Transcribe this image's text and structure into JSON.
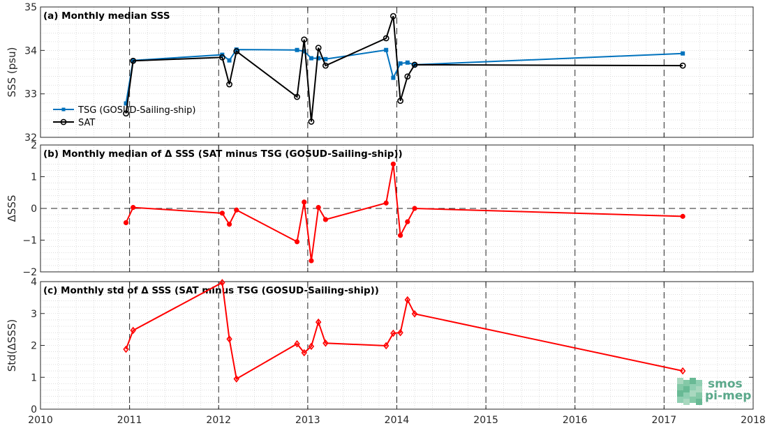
{
  "chart_data": [
    {
      "type": "line",
      "title": "(a) Monthly median SSS",
      "ylabel": "SSS (psu)",
      "ylim": [
        32,
        35
      ],
      "yticks": [
        32,
        33,
        34,
        35
      ],
      "xlim": [
        2010,
        2018
      ],
      "xticks": [
        2010,
        2011,
        2012,
        2013,
        2014,
        2015,
        2016,
        2017,
        2018
      ],
      "grid": "minor-dotted",
      "year_boundaries": [
        2011,
        2012,
        2013,
        2014,
        2015,
        2016,
        2017
      ],
      "legend_position": "lower-left",
      "series": [
        {
          "name": "TSG (GOSUD-Sailing-ship)",
          "color": "#0072BD",
          "marker": "square",
          "x": [
            2010.96,
            2011.04,
            2012.04,
            2012.12,
            2012.2,
            2012.88,
            2012.96,
            2013.04,
            2013.12,
            2013.2,
            2013.88,
            2013.96,
            2014.04,
            2014.12,
            2014.2,
            2017.21
          ],
          "values": [
            32.78,
            33.77,
            33.9,
            33.77,
            34.02,
            34.01,
            33.98,
            33.82,
            33.82,
            33.8,
            34.01,
            33.37,
            33.7,
            33.72,
            33.67,
            33.93
          ]
        },
        {
          "name": "SAT",
          "color": "#000000",
          "marker": "circle",
          "x": [
            2010.96,
            2011.04,
            2012.04,
            2012.12,
            2012.2,
            2012.88,
            2012.96,
            2013.04,
            2013.12,
            2013.2,
            2013.88,
            2013.96,
            2014.04,
            2014.12,
            2014.2,
            2017.21
          ],
          "values": [
            32.55,
            33.76,
            33.84,
            33.22,
            33.98,
            32.93,
            34.25,
            32.36,
            34.06,
            33.65,
            34.28,
            34.79,
            32.84,
            33.4,
            33.67,
            33.65
          ]
        }
      ]
    },
    {
      "type": "line",
      "title": "(b) Monthly median of Δ SSS (SAT minus TSG (GOSUD-Sailing-ship))",
      "ylabel": "ΔSSS",
      "ylim": [
        -2,
        2
      ],
      "yticks": [
        -2,
        -1,
        0,
        1,
        2
      ],
      "xlim": [
        2010,
        2018
      ],
      "grid": "minor-dotted",
      "zero_line": true,
      "series": [
        {
          "color": "#FF0000",
          "marker": "circle",
          "x": [
            2010.96,
            2011.04,
            2012.04,
            2012.12,
            2012.2,
            2012.88,
            2012.96,
            2013.04,
            2013.12,
            2013.2,
            2013.88,
            2013.96,
            2014.04,
            2014.12,
            2014.2,
            2017.21
          ],
          "values": [
            -0.45,
            0.03,
            -0.15,
            -0.5,
            -0.05,
            -1.05,
            0.2,
            -1.65,
            0.03,
            -0.35,
            0.17,
            1.4,
            -0.85,
            -0.42,
            0.0,
            -0.25
          ]
        }
      ]
    },
    {
      "type": "line",
      "title": "(c) Monthly std of Δ SSS (SAT minus TSG (GOSUD-Sailing-ship))",
      "ylabel": "Std(ΔSSS)",
      "ylim": [
        0,
        4
      ],
      "yticks": [
        0,
        1,
        2,
        3,
        4
      ],
      "xlim": [
        2010,
        2018
      ],
      "xticks": [
        2010,
        2011,
        2012,
        2013,
        2014,
        2015,
        2016,
        2017,
        2018
      ],
      "grid": "minor-dotted",
      "series": [
        {
          "color": "#FF0000",
          "marker": "diamond",
          "x": [
            2010.96,
            2011.04,
            2012.04,
            2012.12,
            2012.2,
            2012.88,
            2012.96,
            2013.04,
            2013.12,
            2013.2,
            2013.88,
            2013.96,
            2014.04,
            2014.12,
            2014.2,
            2017.21
          ],
          "values": [
            1.88,
            2.47,
            3.97,
            2.2,
            0.95,
            2.05,
            1.77,
            1.97,
            2.73,
            2.07,
            1.99,
            2.38,
            2.4,
            3.43,
            2.99,
            1.2
          ]
        }
      ]
    }
  ],
  "logo": {
    "line1": "smos",
    "line2": "pi-mep"
  }
}
